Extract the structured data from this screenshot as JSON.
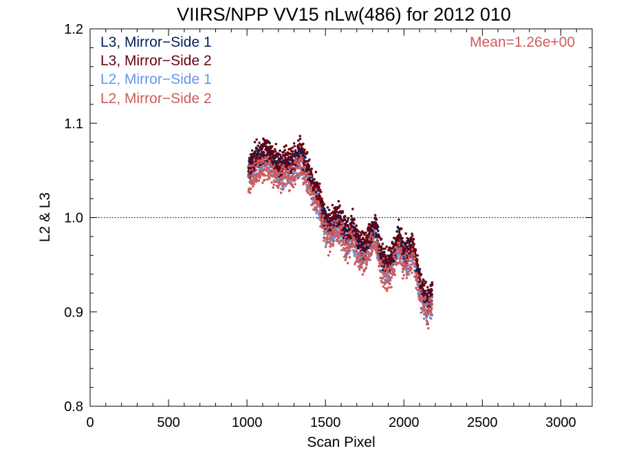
{
  "chart_data": {
    "type": "scatter",
    "title": "VIIRS/NPP VV15 nLw(486) for 2012 010",
    "xlabel": "Scan Pixel",
    "ylabel": "L2 & L3",
    "xlim": [
      0,
      3200
    ],
    "ylim": [
      0.8,
      1.2
    ],
    "xticks": [
      0,
      500,
      1000,
      1500,
      2000,
      2500,
      3000
    ],
    "yticks": [
      "0.8",
      "0.9",
      "1.0",
      "1.1",
      "1.2"
    ],
    "reference_line": 1.0,
    "annotation": "Mean=1.26e+00",
    "annotation_color": "#cd5c5c",
    "legend_placement": "top-left",
    "series": [
      {
        "name": "L3, Mirror−Side 1",
        "color": "#00205b"
      },
      {
        "name": "L3, Mirror−Side 2",
        "color": "#6b0012"
      },
      {
        "name": "L2, Mirror−Side 1",
        "color": "#6495ed"
      },
      {
        "name": "L2, Mirror−Side 2",
        "color": "#cd5c5c"
      }
    ],
    "profile": {
      "x": [
        1010,
        1040,
        1070,
        1100,
        1130,
        1160,
        1190,
        1220,
        1250,
        1280,
        1310,
        1340,
        1370,
        1400,
        1430,
        1460,
        1490,
        1520,
        1550,
        1580,
        1610,
        1640,
        1670,
        1700,
        1730,
        1760,
        1790,
        1820,
        1850,
        1880,
        1910,
        1940,
        1970,
        2000,
        2030,
        2060,
        2090,
        2120,
        2150,
        2180
      ],
      "y": [
        1.045,
        1.052,
        1.058,
        1.061,
        1.062,
        1.058,
        1.05,
        1.046,
        1.055,
        1.05,
        1.055,
        1.062,
        1.052,
        1.04,
        1.028,
        1.015,
        0.995,
        0.985,
        0.99,
        0.995,
        0.985,
        0.975,
        0.985,
        0.97,
        0.96,
        0.965,
        0.975,
        0.985,
        0.955,
        0.945,
        0.945,
        0.96,
        0.975,
        0.955,
        0.96,
        0.965,
        0.935,
        0.915,
        0.905,
        0.915
      ]
    },
    "offsets": {
      "L3_MS1": 0.006,
      "L3_MS2": 0.01,
      "L2_MS1": -0.004,
      "L2_MS2": -0.008
    }
  }
}
